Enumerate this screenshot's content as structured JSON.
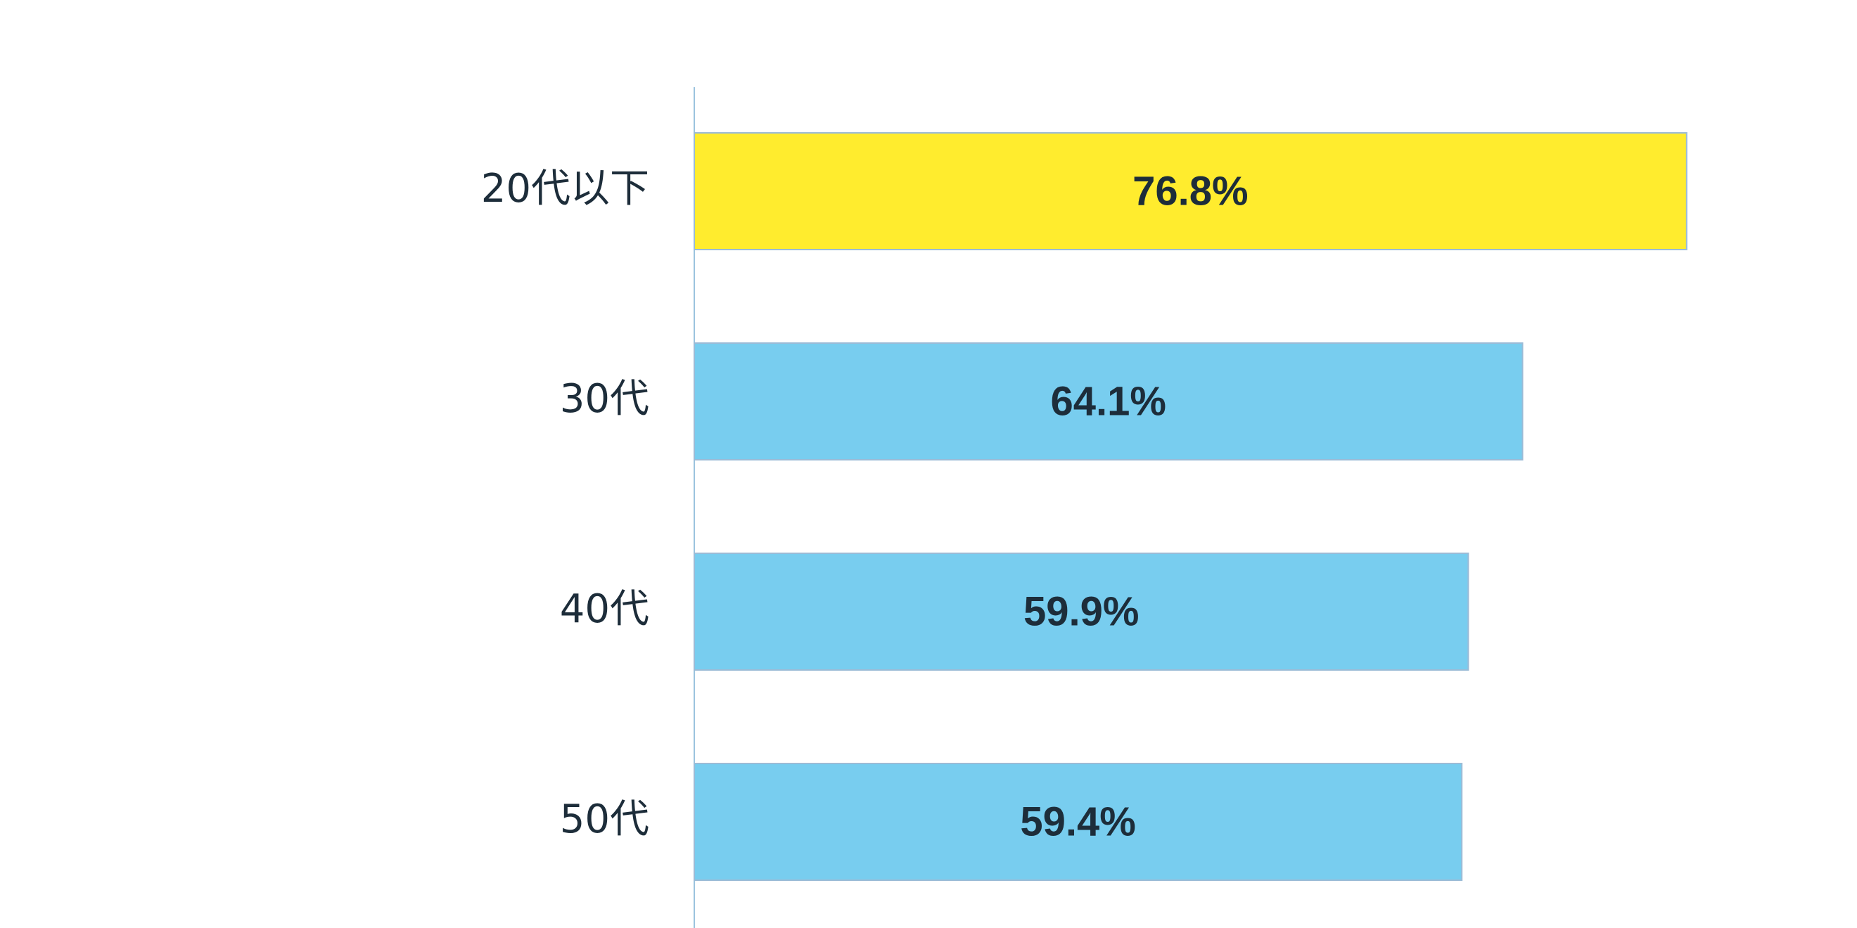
{
  "chart_data": {
    "type": "hbar",
    "categories": [
      "20代以下",
      "30代",
      "40代",
      "50代"
    ],
    "values": [
      76.8,
      64.1,
      59.9,
      59.4
    ],
    "value_labels": [
      "76.8%",
      "64.1%",
      "59.9%",
      "59.4%"
    ],
    "colors": [
      "#ffec2e",
      "#78cdef",
      "#78cdef",
      "#78cdef"
    ]
  }
}
